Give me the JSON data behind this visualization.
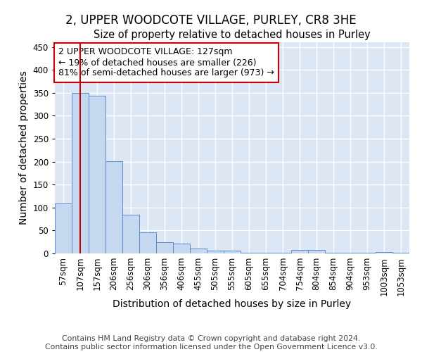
{
  "title": "2, UPPER WOODCOTE VILLAGE, PURLEY, CR8 3HE",
  "subtitle": "Size of property relative to detached houses in Purley",
  "xlabel": "Distribution of detached houses by size in Purley",
  "ylabel": "Number of detached properties",
  "footer_line1": "Contains HM Land Registry data © Crown copyright and database right 2024.",
  "footer_line2": "Contains public sector information licensed under the Open Government Licence v3.0.",
  "annotation_line1": "2 UPPER WOODCOTE VILLAGE: 127sqm",
  "annotation_line2": "← 19% of detached houses are smaller (226)",
  "annotation_line3": "81% of semi-detached houses are larger (973) →",
  "bar_color": "#c5d8ef",
  "bar_edge_color": "#5b8dc8",
  "vline_color": "#cc0000",
  "annotation_box_color": "#cc0000",
  "bg_color": "#dce6f5",
  "categories": [
    "57sqm",
    "107sqm",
    "157sqm",
    "206sqm",
    "256sqm",
    "306sqm",
    "356sqm",
    "406sqm",
    "455sqm",
    "505sqm",
    "555sqm",
    "605sqm",
    "655sqm",
    "704sqm",
    "754sqm",
    "804sqm",
    "854sqm",
    "904sqm",
    "953sqm",
    "1003sqm",
    "1053sqm"
  ],
  "values": [
    109,
    350,
    344,
    201,
    84,
    46,
    25,
    22,
    11,
    6,
    6,
    1,
    2,
    2,
    8,
    7,
    1,
    1,
    1,
    3,
    1
  ],
  "ylim": [
    0,
    460
  ],
  "yticks": [
    0,
    50,
    100,
    150,
    200,
    250,
    300,
    350,
    400,
    450
  ],
  "vline_x_index": 1.0,
  "title_fontsize": 12,
  "subtitle_fontsize": 10.5,
  "axis_label_fontsize": 10,
  "tick_fontsize": 8.5,
  "annotation_fontsize": 9,
  "footer_fontsize": 7.8
}
